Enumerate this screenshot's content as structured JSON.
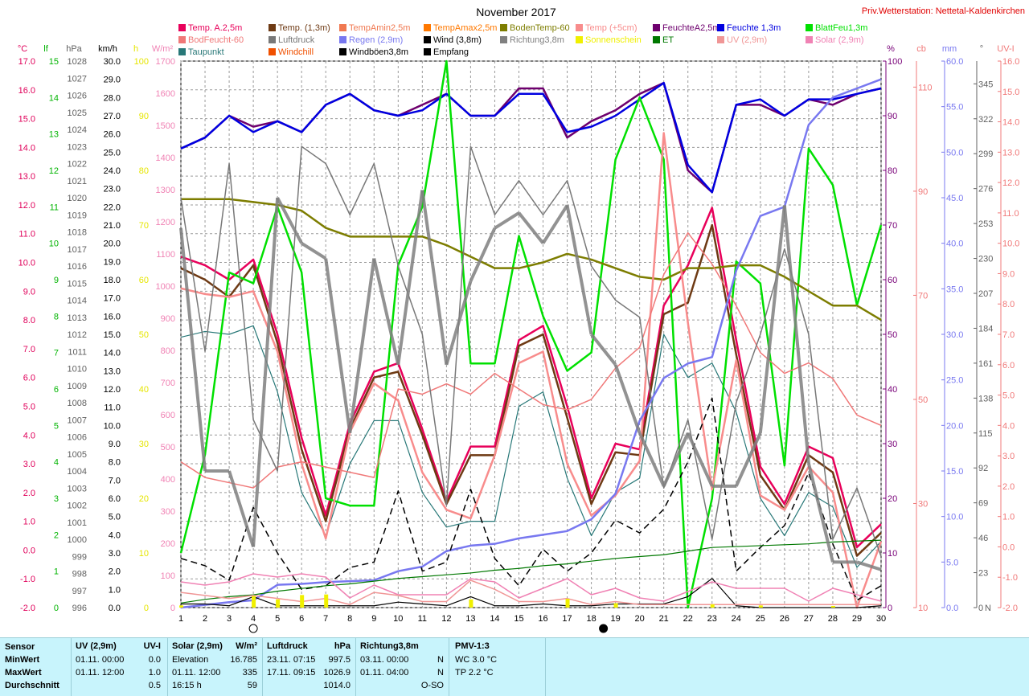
{
  "chart_data": {
    "type": "line",
    "title": "November 2017",
    "station": "Priv.Wetterstation: Nettetal-Kaldenkirchen",
    "x": [
      1,
      2,
      3,
      4,
      5,
      6,
      7,
      8,
      9,
      10,
      11,
      12,
      13,
      14,
      15,
      16,
      17,
      18,
      19,
      20,
      21,
      22,
      23,
      24,
      25,
      26,
      27,
      28,
      29,
      30
    ],
    "xlim": [
      1,
      30
    ],
    "moon_markers": [
      {
        "day": 4,
        "phase": "full"
      },
      {
        "day": 18.5,
        "phase": "new"
      }
    ],
    "grid": true,
    "legend_position": "top",
    "legend": [
      {
        "label": "Temp. A.2,5m",
        "color": "#e8005a"
      },
      {
        "label": "Temp. (1,3m)",
        "color": "#6e3a14"
      },
      {
        "label": "TempAmin2,5m",
        "color": "#f07850"
      },
      {
        "label": "TempAmax2,5m",
        "color": "#ff7800"
      },
      {
        "label": "BodenTemp-60",
        "color": "#7d7d00"
      },
      {
        "label": "Temp (+5cm)",
        "color": "#f88c8c"
      },
      {
        "label": "FeuchteA2,5m",
        "color": "#6e006e"
      },
      {
        "label": "Feuchte 1,3m",
        "color": "#0000e0"
      },
      {
        "label": "BlattFeu1,3m",
        "color": "#00e000"
      },
      {
        "label": "BodFeucht-60",
        "color": "#f07878"
      },
      {
        "label": "Luftdruck",
        "color": "#787878"
      },
      {
        "label": "Regen (2,9m)",
        "color": "#7878f0"
      },
      {
        "label": "Wind (3,8m)",
        "color": "#000000"
      },
      {
        "label": "Richtung3,8m",
        "color": "#808080"
      },
      {
        "label": "Sonnenschein",
        "color": "#f0f000"
      },
      {
        "label": "ET",
        "color": "#007800"
      },
      {
        "label": "UV (2,9m)",
        "color": "#f09696"
      },
      {
        "label": "Solar (2,9m)",
        "color": "#f082b4"
      },
      {
        "label": "Taupunkt",
        "color": "#287878"
      },
      {
        "label": "Windchill",
        "color": "#f05000"
      },
      {
        "label": "Windböen3,8m",
        "color": "#000000"
      },
      {
        "label": "Empfang",
        "color": "#000000"
      }
    ],
    "left_axes": [
      {
        "unit": "°C",
        "color": "#e0005a",
        "range": [
          -2.0,
          17.0
        ],
        "ticks": [
          "17.0",
          "16.0",
          "15.0",
          "14.0",
          "13.0",
          "12.0",
          "11.0",
          "10.0",
          "9.0",
          "8.0",
          "7.0",
          "6.0",
          "5.0",
          "4.0",
          "3.0",
          "2.0",
          "1.0",
          "0.0",
          "-1.0",
          "-2.0"
        ]
      },
      {
        "unit": "lf",
        "color": "#00b400",
        "range": [
          0,
          15
        ],
        "ticks": [
          "15",
          "14",
          "13",
          "12",
          "11",
          "10",
          "9",
          "8",
          "7",
          "6",
          "5",
          "4",
          "3",
          "2",
          "1",
          "0"
        ]
      },
      {
        "unit": "hPa",
        "color": "#606060",
        "range": [
          996,
          1028
        ],
        "ticks": [
          "1028",
          "1027",
          "1026",
          "1025",
          "1024",
          "1023",
          "1022",
          "1021",
          "1020",
          "1019",
          "1018",
          "1017",
          "1016",
          "1015",
          "1014",
          "1013",
          "1012",
          "1011",
          "1010",
          "1009",
          "1008",
          "1007",
          "1006",
          "1005",
          "1004",
          "1003",
          "1002",
          "1001",
          "1000",
          "999",
          "998",
          "997",
          "996"
        ]
      },
      {
        "unit": "km/h",
        "color": "#000000",
        "range": [
          0.0,
          30.0
        ],
        "ticks": [
          "30.0",
          "29.0",
          "28.0",
          "27.0",
          "26.0",
          "25.0",
          "24.0",
          "23.0",
          "22.0",
          "21.0",
          "20.0",
          "19.0",
          "18.0",
          "17.0",
          "16.0",
          "15.0",
          "14.0",
          "13.0",
          "12.0",
          "11.0",
          "10.0",
          "9.0",
          "8.0",
          "7.0",
          "6.0",
          "5.0",
          "4.0",
          "3.0",
          "2.0",
          "1.0",
          "0.0"
        ]
      },
      {
        "unit": "h",
        "color": "#e6e600",
        "range": [
          0,
          100
        ],
        "ticks": [
          "100",
          "90",
          "80",
          "70",
          "60",
          "50",
          "40",
          "30",
          "20",
          "10",
          "0"
        ]
      },
      {
        "unit": "W/m²",
        "color": "#f082b4",
        "range": [
          0,
          1700
        ],
        "ticks": [
          "1700",
          "1600",
          "1500",
          "1400",
          "1300",
          "1200",
          "1100",
          "1000",
          "900",
          "800",
          "700",
          "600",
          "500",
          "400",
          "300",
          "200",
          "100",
          "0"
        ]
      }
    ],
    "right_axes": [
      {
        "unit": "%",
        "color": "#780078",
        "range": [
          0,
          100
        ],
        "ticks": [
          "100",
          "90",
          "80",
          "70",
          "60",
          "50",
          "40",
          "30",
          "20",
          "10",
          "0"
        ]
      },
      {
        "unit": "cb",
        "color": "#f07878",
        "range": [
          10,
          115
        ],
        "ticks": [
          "110",
          "90",
          "70",
          "50",
          "30",
          "10"
        ]
      },
      {
        "unit": "mm",
        "color": "#7878f0",
        "range": [
          0.0,
          60.0
        ],
        "ticks": [
          "60.0",
          "55.0",
          "50.0",
          "45.0",
          "40.0",
          "35.0",
          "30.0",
          "25.0",
          "20.0",
          "15.0",
          "10.0",
          "5.0",
          "0.0"
        ]
      },
      {
        "unit": "°",
        "color": "#606060",
        "range": [
          0,
          360
        ],
        "ticks": [
          "345",
          "322",
          "299",
          "276",
          "253",
          "230",
          "207",
          "184",
          "161",
          "138",
          "115",
          "92",
          "69",
          "46",
          "23",
          "0"
        ],
        "zero_label": "N"
      },
      {
        "unit": "UV-I",
        "color": "#f07878",
        "range": [
          -2.0,
          16.0
        ],
        "ticks": [
          "16.0",
          "15.0",
          "14.0",
          "13.0",
          "12.0",
          "11.0",
          "10.0",
          "9.0",
          "8.0",
          "7.0",
          "6.0",
          "5.0",
          "4.0",
          "3.0",
          "2.0",
          "1.0",
          "0.0",
          "-1.0",
          "-2.0"
        ]
      }
    ],
    "series": [
      {
        "name": "Temp. A.2,5m",
        "color": "#e8005a",
        "axis": "°C",
        "values": [
          10.2,
          9.9,
          9.4,
          10.1,
          7.5,
          3.9,
          1.2,
          4.4,
          6.2,
          6.5,
          4.2,
          1.7,
          3.6,
          3.6,
          7.3,
          7.8,
          5.0,
          1.8,
          3.7,
          3.5,
          8.5,
          9.9,
          11.9,
          7.3,
          2.9,
          1.6,
          3.6,
          3.2,
          0.1,
          0.9
        ]
      },
      {
        "name": "Temp. (1,3m)",
        "color": "#6e3a14",
        "axis": "°C",
        "values": [
          9.8,
          9.4,
          8.8,
          9.9,
          7.2,
          3.5,
          1.0,
          4.2,
          6.0,
          6.2,
          4.0,
          1.6,
          3.3,
          3.3,
          7.1,
          7.5,
          4.6,
          1.6,
          3.4,
          3.3,
          8.2,
          8.6,
          11.3,
          6.8,
          2.6,
          1.4,
          3.3,
          2.7,
          -0.2,
          0.6
        ]
      },
      {
        "name": "Taupunkt",
        "color": "#287878",
        "axis": "°C",
        "values": [
          7.4,
          7.6,
          7.5,
          7.8,
          5.5,
          2.0,
          0.5,
          3.0,
          4.5,
          4.5,
          2.0,
          0.8,
          1.0,
          1.0,
          5.0,
          5.5,
          2.5,
          0.5,
          2.0,
          2.5,
          7.5,
          6.0,
          6.5,
          4.8,
          1.8,
          0.5,
          2.0,
          1.5,
          -0.6,
          0.3
        ]
      },
      {
        "name": "FeuchteA2,5m",
        "color": "#6e006e",
        "axis": "%",
        "values": [
          84,
          86,
          90,
          88,
          89,
          87,
          92,
          94,
          91,
          90,
          92,
          94,
          90,
          90,
          95,
          95,
          86,
          89,
          91,
          94,
          96,
          80,
          76,
          92,
          92,
          90,
          93,
          92,
          94,
          95
        ]
      },
      {
        "name": "Feuchte 1,3m",
        "color": "#0000e0",
        "axis": "%",
        "values": [
          84,
          86,
          90,
          87,
          89,
          87,
          92,
          94,
          91,
          90,
          91,
          94,
          90,
          90,
          94,
          94,
          87,
          88,
          90,
          93,
          96,
          81,
          76,
          92,
          93,
          90,
          93,
          93,
          94,
          95
        ]
      },
      {
        "name": "BlattFeu1,3m",
        "color": "#00e000",
        "axis": "lf",
        "values": [
          1.5,
          4.2,
          9.2,
          8.9,
          11.0,
          9.2,
          3.0,
          2.8,
          2.8,
          9.4,
          11.0,
          15.0,
          6.7,
          6.7,
          10.2,
          8.0,
          6.5,
          7.0,
          12.3,
          14.0,
          12.3,
          0.0,
          3.0,
          9.5,
          8.9,
          3.9,
          12.6,
          11.6,
          8.3,
          10.5
        ]
      },
      {
        "name": "BodenTemp-60",
        "color": "#7d7d00",
        "axis": "°C",
        "values": [
          12.2,
          12.2,
          12.2,
          12.1,
          12.0,
          11.8,
          11.2,
          10.9,
          10.9,
          10.9,
          10.9,
          10.6,
          10.2,
          9.8,
          9.8,
          10.0,
          10.3,
          10.1,
          9.8,
          9.5,
          9.4,
          9.8,
          9.8,
          9.9,
          9.9,
          9.5,
          9.0,
          8.5,
          8.5,
          8.0
        ]
      },
      {
        "name": "Temp (+5cm)",
        "color": "#f88c8c",
        "axis": "°C",
        "values": [
          9.1,
          8.9,
          8.8,
          9.0,
          6.9,
          3.0,
          0.4,
          4.1,
          5.8,
          5.2,
          2.7,
          1.4,
          1.1,
          3.3,
          6.5,
          6.9,
          3.0,
          1.2,
          1.9,
          3.1,
          14.5,
          7.9,
          2.1,
          6.6,
          1.9,
          1.4,
          2.9,
          2.0,
          -2.0,
          0.3
        ]
      },
      {
        "name": "BodFeucht-60",
        "color": "#f07878",
        "axis": "cb",
        "values": [
          38,
          35,
          34,
          33,
          37,
          38,
          37,
          36,
          35,
          52,
          51,
          53,
          51,
          55,
          52,
          49,
          48,
          50,
          56,
          60,
          74,
          82,
          76,
          68,
          59,
          55,
          57,
          54,
          47,
          45
        ]
      },
      {
        "name": "Luftdruck",
        "color": "#787878",
        "axis": "hPa",
        "values": [
          1020,
          1011,
          1022,
          1007,
          1004,
          1023,
          1022,
          1019,
          1022,
          1016,
          1012,
          1002,
          1023,
          1019,
          1021,
          1019,
          1021,
          1016,
          1014,
          1013,
          1003,
          1007,
          1000,
          1008,
          1012,
          1017,
          1012,
          1000,
          1003,
          999
        ]
      },
      {
        "name": "Regen (2,9m)",
        "color": "#7878f0",
        "axis": "mm",
        "values": [
          0.0,
          0.3,
          0.6,
          0.8,
          2.5,
          2.6,
          2.8,
          2.9,
          3.0,
          4.0,
          4.5,
          6.2,
          6.8,
          7.0,
          7.6,
          8.0,
          8.4,
          9.7,
          12.5,
          20.5,
          25.2,
          26.8,
          27.5,
          37.0,
          43.0,
          44.0,
          53.0,
          56.0,
          57.0,
          58.0
        ]
      },
      {
        "name": "Wind (3,8m)",
        "color": "#000000",
        "axis": "km/h",
        "values": [
          0.2,
          0.2,
          0.1,
          0.6,
          0.1,
          0.1,
          0.1,
          0.1,
          0.1,
          0.3,
          0.2,
          0.1,
          0.6,
          0.1,
          0.1,
          0.2,
          0.1,
          0.1,
          0.2,
          0.2,
          0.2,
          0.6,
          1.6,
          0.1,
          0.0,
          0.0,
          0.0,
          0.0,
          0.0,
          0.1
        ]
      },
      {
        "name": "Windböen3,8m",
        "color": "#000000",
        "axis": "km/h",
        "values": [
          2.7,
          2.3,
          1.5,
          5.5,
          3.0,
          1.0,
          1.2,
          2.2,
          2.5,
          6.4,
          2.0,
          2.5,
          6.5,
          2.7,
          1.2,
          3.2,
          2.0,
          3.0,
          4.8,
          4.1,
          5.4,
          8.0,
          11.5,
          2.0,
          3.3,
          4.5,
          7.4,
          3.5,
          0.4,
          1.2
        ]
      },
      {
        "name": "ET",
        "color": "#007800",
        "axis": "mm",
        "values": [
          0.5,
          0.9,
          1.2,
          1.4,
          1.8,
          2.1,
          2.4,
          2.6,
          2.9,
          3.2,
          3.4,
          3.6,
          3.8,
          4.1,
          4.3,
          4.6,
          4.8,
          5.1,
          5.4,
          5.6,
          5.8,
          6.2,
          6.6,
          6.7,
          6.8,
          6.9,
          7.0,
          7.2,
          7.3,
          7.4
        ]
      },
      {
        "name": "Solar (2,9m)",
        "color": "#f082b4",
        "axis": "W/m²",
        "values": [
          80,
          70,
          80,
          105,
          95,
          105,
          95,
          30,
          70,
          40,
          40,
          40,
          90,
          80,
          30,
          60,
          90,
          40,
          60,
          30,
          20,
          50,
          80,
          60,
          60,
          60,
          20,
          60,
          40,
          20
        ]
      },
      {
        "name": "UV (2,9m)",
        "color": "#f09696",
        "axis": "UV-I",
        "values": [
          -1.5,
          -1.6,
          -1.7,
          -1.6,
          -1.7,
          -1.8,
          -1.7,
          -1.9,
          -1.5,
          -1.6,
          -1.8,
          -1.8,
          -1.1,
          -1.4,
          -1.8,
          -1.8,
          -1.7,
          -1.9,
          -1.8,
          -1.9,
          -1.9,
          -1.9,
          -1.9,
          -1.9,
          -1.9,
          -1.9,
          -1.9,
          -1.9,
          -1.9,
          -1.9
        ]
      },
      {
        "name": "Sonnenschein",
        "color": "#f0f000",
        "axis": "h",
        "type": "bar",
        "values": [
          0.4,
          0,
          0,
          2.1,
          1.5,
          2.3,
          2.4,
          0,
          0,
          0,
          0,
          0,
          1.5,
          0,
          0,
          0,
          1.6,
          0,
          0.8,
          0,
          0,
          0,
          0.6,
          0,
          0.4,
          0,
          0,
          0.3,
          0,
          0
        ]
      },
      {
        "name": "Richtung3,8m",
        "color": "#808080",
        "axis": "°",
        "style": "thick-segments",
        "values": [
          250,
          90,
          90,
          40,
          270,
          240,
          230,
          115,
          230,
          160,
          275,
          160,
          215,
          250,
          260,
          240,
          265,
          180,
          160,
          115,
          80,
          115,
          80,
          80,
          115,
          265,
          95,
          30,
          30,
          25
        ]
      }
    ]
  },
  "stats": {
    "headers": {
      "sensor": "Sensor",
      "uv": "UV (2,9m)",
      "uv_unit": "UV-I",
      "solar": "Solar (2,9m)",
      "solar_unit": "W/m²",
      "druck": "Luftdruck",
      "druck_unit": "hPa",
      "richtung": "Richtung3,8m",
      "pmv": "PMV-1:3"
    },
    "rows": [
      {
        "label": "MinWert",
        "uv_time": "01.11.  00:00",
        "uv_val": "0.0",
        "solar_time": "Elevation",
        "solar_val": "16.785",
        "druck_time": "23.11.  07:15",
        "druck_val": "997.5",
        "richtung_time": "03.11.  00:00",
        "richtung_val": "N",
        "pmv": "WC 3.0 °C"
      },
      {
        "label": "MaxWert",
        "uv_time": "01.11.  12:00",
        "uv_val": "1.0",
        "solar_time": "01.11.  12:00",
        "solar_val": "335",
        "druck_time": "17.11.  09:15",
        "druck_val": "1026.9",
        "richtung_time": "01.11.  04:00",
        "richtung_val": "N",
        "pmv": "TP 2.2 °C"
      },
      {
        "label": "Durchschnitt",
        "uv_time": "",
        "uv_val": "0.5",
        "solar_time": "16:15 h",
        "solar_val": "59",
        "druck_time": "",
        "druck_val": "1014.0",
        "richtung_time": "",
        "richtung_val": "O-SO",
        "pmv": ""
      }
    ]
  }
}
